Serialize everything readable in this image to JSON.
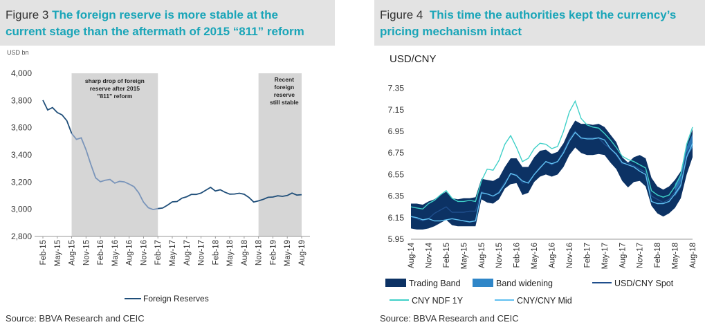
{
  "figure3": {
    "label": "Figure 3",
    "title": "The foreign reserve is more stable at the current stage than the aftermath of 2015 “811” reform",
    "title_line1": "The foreign reserve is more stable at the",
    "title_line2": "current stage than the aftermath of 2015 “811” reform",
    "unit": "USD bn",
    "annotation1": [
      "sharp drop of foreign",
      "reserve after 2015",
      "\"811\" reform"
    ],
    "annotation2": [
      "Recent",
      "foreign",
      "reserve",
      "still stable"
    ],
    "source": "Source: BBVA Research and CEIC"
  },
  "figure4": {
    "label": "Figure 4",
    "title_line1": "This time the authorities kept the currency’s",
    "title_line2": "pricing mechanism intact",
    "chart_title": "USD/CNY",
    "source": "Source: BBVA Research and CEIC"
  },
  "colors": {
    "title_accent": "#1aa5b8",
    "header_bg": "#e3e3e3",
    "reserves_line": "#1f4e79",
    "reserves_line_light": "#7a95ba",
    "shade": "#d6d6d6",
    "trading_band": "#0c3264",
    "band_widening": "#2f86c8",
    "spot": "#1f4e8c",
    "ndf": "#3fd0c8",
    "mid": "#5fbff0"
  },
  "chart_data": [
    {
      "type": "line",
      "title": "The foreign reserve is more stable at the current stage than the aftermath of 2015 “811” reform",
      "ylabel": "USD bn",
      "ylim": [
        2800,
        4000
      ],
      "yticks": [
        2800,
        3000,
        3200,
        3400,
        3600,
        3800,
        4000
      ],
      "ytick_labels": [
        "2,800",
        "3,000",
        "3,200",
        "3,400",
        "3,600",
        "3,800",
        "4,000"
      ],
      "xtick_labels": [
        "Feb-15",
        "May-15",
        "Aug-15",
        "Nov-15",
        "Feb-16",
        "May-16",
        "Aug-16",
        "Nov-16",
        "Feb-17",
        "May-17",
        "Aug-17",
        "Nov-17",
        "Feb-18",
        "May-18",
        "Aug-18",
        "Nov-18",
        "Feb-19",
        "May-19",
        "Aug-19"
      ],
      "shaded_regions": [
        [
          "Aug-15",
          "Feb-17"
        ],
        [
          "Nov-18",
          "Aug-19"
        ]
      ],
      "legend": "bottom",
      "series": [
        {
          "name": "Foreign Reserves",
          "x": [
            "Feb-15",
            "Mar-15",
            "Apr-15",
            "May-15",
            "Jun-15",
            "Jul-15",
            "Aug-15",
            "Sep-15",
            "Oct-15",
            "Nov-15",
            "Dec-15",
            "Jan-16",
            "Feb-16",
            "Mar-16",
            "Apr-16",
            "May-16",
            "Jun-16",
            "Jul-16",
            "Aug-16",
            "Sep-16",
            "Oct-16",
            "Nov-16",
            "Dec-16",
            "Jan-17",
            "Feb-17",
            "Mar-17",
            "Apr-17",
            "May-17",
            "Jun-17",
            "Jul-17",
            "Aug-17",
            "Sep-17",
            "Oct-17",
            "Nov-17",
            "Dec-17",
            "Jan-18",
            "Feb-18",
            "Mar-18",
            "Apr-18",
            "May-18",
            "Jun-18",
            "Jul-18",
            "Aug-18",
            "Sep-18",
            "Oct-18",
            "Nov-18",
            "Dec-18",
            "Jan-19",
            "Feb-19",
            "Mar-19",
            "Apr-19",
            "May-19",
            "Jun-19",
            "Jul-19",
            "Aug-19"
          ],
          "values": [
            3802,
            3730,
            3748,
            3711,
            3694,
            3651,
            3557,
            3514,
            3525,
            3438,
            3330,
            3231,
            3202,
            3213,
            3219,
            3192,
            3205,
            3201,
            3185,
            3166,
            3121,
            3052,
            3011,
            2998,
            3005,
            3009,
            3030,
            3054,
            3057,
            3081,
            3092,
            3109,
            3109,
            3119,
            3140,
            3161,
            3134,
            3143,
            3125,
            3111,
            3112,
            3118,
            3110,
            3087,
            3053,
            3062,
            3073,
            3088,
            3090,
            3099,
            3095,
            3101,
            3119,
            3104,
            3107
          ]
        }
      ]
    },
    {
      "type": "line",
      "title": "USD/CNY",
      "ylim": [
        5.95,
        7.45
      ],
      "yticks": [
        5.95,
        6.15,
        6.35,
        6.55,
        6.75,
        6.95,
        7.15,
        7.35
      ],
      "ytick_labels": [
        "5.95",
        "6.15",
        "6.35",
        "6.55",
        "6.75",
        "6.95",
        "7.15",
        "7.35"
      ],
      "xtick_labels": [
        "Aug-14",
        "Nov-14",
        "Feb-15",
        "May-15",
        "Aug-15",
        "Nov-15",
        "Feb-16",
        "May-16",
        "Aug-16",
        "Nov-16",
        "Feb-17",
        "May-17",
        "Aug-17",
        "Nov-17",
        "Feb-18",
        "May-18",
        "Aug-18"
      ],
      "legend": "bottom",
      "x": [
        "Aug-14",
        "Sep-14",
        "Oct-14",
        "Nov-14",
        "Dec-14",
        "Jan-15",
        "Feb-15",
        "Mar-15",
        "Apr-15",
        "May-15",
        "Jun-15",
        "Jul-15",
        "Aug-15",
        "Sep-15",
        "Oct-15",
        "Nov-15",
        "Dec-15",
        "Jan-16",
        "Feb-16",
        "Mar-16",
        "Apr-16",
        "May-16",
        "Jun-16",
        "Jul-16",
        "Aug-16",
        "Sep-16",
        "Oct-16",
        "Nov-16",
        "Dec-16",
        "Jan-17",
        "Feb-17",
        "Mar-17",
        "Apr-17",
        "May-17",
        "Jun-17",
        "Jul-17",
        "Aug-17",
        "Sep-17",
        "Oct-17",
        "Nov-17",
        "Dec-17",
        "Jan-18",
        "Feb-18",
        "Mar-18",
        "Apr-18",
        "May-18",
        "Jun-18",
        "Jul-18",
        "Aug-18"
      ],
      "series": [
        {
          "name": "Trading Band",
          "kind": "band",
          "lower": [
            6.05,
            6.04,
            6.04,
            6.05,
            6.07,
            6.1,
            6.13,
            6.08,
            6.07,
            6.07,
            6.07,
            6.07,
            6.32,
            6.29,
            6.28,
            6.32,
            6.42,
            6.46,
            6.47,
            6.36,
            6.38,
            6.48,
            6.53,
            6.55,
            6.53,
            6.55,
            6.62,
            6.73,
            6.8,
            6.75,
            6.73,
            6.73,
            6.74,
            6.73,
            6.66,
            6.6,
            6.49,
            6.43,
            6.48,
            6.49,
            6.44,
            6.26,
            6.19,
            6.16,
            6.19,
            6.24,
            6.33,
            6.55,
            6.71
          ],
          "upper": [
            6.28,
            6.28,
            6.27,
            6.3,
            6.32,
            6.36,
            6.39,
            6.33,
            6.32,
            6.33,
            6.33,
            6.34,
            6.51,
            6.5,
            6.49,
            6.52,
            6.62,
            6.7,
            6.7,
            6.62,
            6.62,
            6.71,
            6.77,
            6.78,
            6.74,
            6.76,
            6.84,
            6.96,
            7.05,
            7.02,
            7.02,
            7.01,
            7.02,
            6.99,
            6.92,
            6.85,
            6.71,
            6.66,
            6.71,
            6.73,
            6.7,
            6.52,
            6.44,
            6.41,
            6.44,
            6.5,
            6.58,
            6.82,
            6.97
          ]
        },
        {
          "name": "Band widening",
          "kind": "band"
        },
        {
          "name": "USD/CNY Spot",
          "values": [
            6.16,
            6.14,
            6.12,
            6.14,
            6.19,
            6.22,
            6.25,
            6.2,
            6.2,
            6.2,
            6.21,
            6.21,
            6.39,
            6.37,
            6.35,
            6.39,
            6.48,
            6.55,
            6.55,
            6.47,
            6.48,
            6.55,
            6.62,
            6.67,
            6.64,
            6.67,
            6.77,
            6.88,
            6.95,
            6.88,
            6.89,
            6.89,
            6.89,
            6.83,
            6.79,
            6.73,
            6.65,
            6.66,
            6.63,
            6.6,
            6.57,
            6.35,
            6.32,
            6.29,
            6.32,
            6.39,
            6.47,
            6.75,
            6.84
          ]
        },
        {
          "name": "CNY NDF 1Y",
          "values": [
            6.25,
            6.24,
            6.23,
            6.28,
            6.31,
            6.36,
            6.4,
            6.33,
            6.3,
            6.3,
            6.31,
            6.3,
            6.49,
            6.6,
            6.59,
            6.68,
            6.83,
            6.91,
            6.8,
            6.67,
            6.7,
            6.79,
            6.84,
            6.83,
            6.79,
            6.81,
            6.95,
            7.13,
            7.23,
            7.07,
            7.01,
            6.99,
            6.98,
            6.93,
            6.87,
            6.8,
            6.72,
            6.69,
            6.67,
            6.64,
            6.61,
            6.4,
            6.36,
            6.34,
            6.36,
            6.44,
            6.55,
            6.83,
            6.99
          ]
        },
        {
          "name": "CNY/CNY Mid",
          "values": [
            6.16,
            6.15,
            6.13,
            6.14,
            6.12,
            6.12,
            6.13,
            6.14,
            6.13,
            6.12,
            6.11,
            6.12,
            6.38,
            6.37,
            6.35,
            6.38,
            6.46,
            6.56,
            6.54,
            6.49,
            6.47,
            6.55,
            6.61,
            6.67,
            6.65,
            6.67,
            6.75,
            6.86,
            6.94,
            6.89,
            6.88,
            6.88,
            6.89,
            6.87,
            6.79,
            6.74,
            6.66,
            6.64,
            6.62,
            6.58,
            6.55,
            6.3,
            6.28,
            6.28,
            6.3,
            6.37,
            6.45,
            6.71,
            6.84
          ]
        }
      ]
    }
  ]
}
